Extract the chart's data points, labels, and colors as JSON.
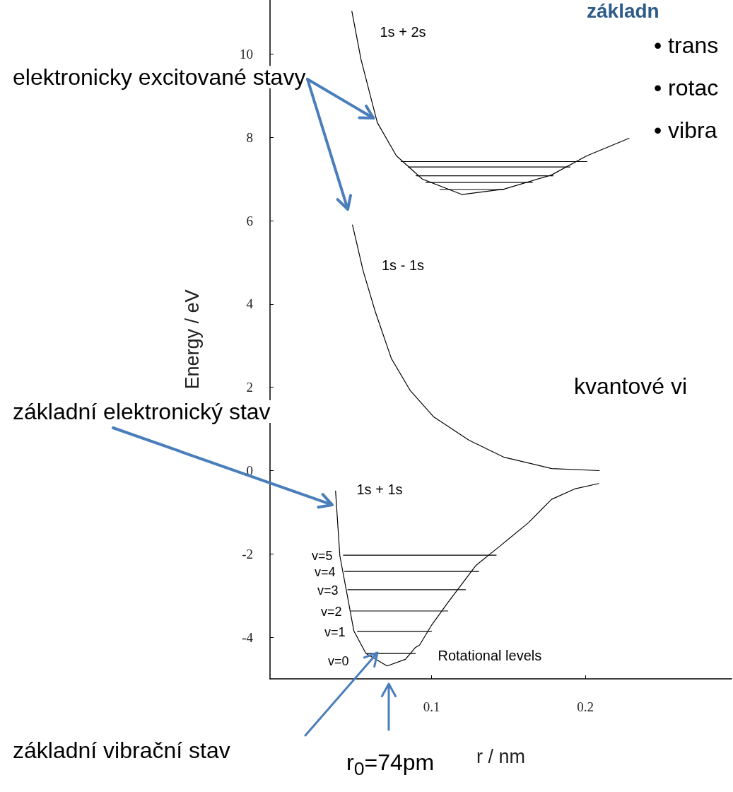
{
  "chart_data": {
    "type": "line",
    "xlabel": "r / nm",
    "ylabel": "Energy / eV",
    "xlim": [
      -0.005,
      0.295
    ],
    "ylim": [
      -5,
      11.3
    ],
    "xticks": [
      0.1,
      0.2
    ],
    "yticks": [
      -4,
      -2,
      0,
      2,
      4,
      6,
      8,
      10
    ],
    "marker": "none",
    "line_style": "solid",
    "grid": false,
    "series": [
      {
        "color": "#000000",
        "x": [
          0.0376,
          0.0404,
          0.045,
          0.0495,
          0.0573,
          0.0711,
          0.083,
          0.0894,
          0.0922,
          0.1,
          0.1106,
          0.129,
          0.1445,
          0.163,
          0.178,
          0.193,
          0.2087
        ],
        "values": [
          -0.49,
          -2.05,
          -2.95,
          -3.85,
          -4.39,
          -4.69,
          -4.53,
          -4.25,
          -4.19,
          -3.71,
          -3.17,
          -2.27,
          -1.81,
          -1.25,
          -0.69,
          -0.44,
          -0.31
        ]
      },
      {
        "color": "#000000",
        "x": [
          0.0486,
          0.0555,
          0.0633,
          0.0739,
          0.0862,
          0.1014,
          0.1243,
          0.1472,
          0.178,
          0.209
        ],
        "values": [
          5.9,
          4.8,
          3.83,
          2.69,
          1.92,
          1.29,
          0.73,
          0.32,
          0.05,
          0
        ]
      },
      {
        "color": "#000000",
        "x": [
          0.0482,
          0.0541,
          0.0647,
          0.0771,
          0.094,
          0.1197,
          0.1472,
          0.178,
          0.201,
          0.2284
        ],
        "values": [
          11.03,
          9.88,
          8.36,
          7.56,
          7.0,
          6.63,
          6.76,
          7.1,
          7.56,
          7.98
        ]
      },
      {
        "color": "#000000",
        "x": [
          0.0427,
          0.142
        ],
        "values": [
          -2.03,
          -2.03
        ]
      },
      {
        "color": "#000000",
        "x": [
          0.0435,
          0.1307
        ],
        "values": [
          -2.42,
          -2.42
        ]
      },
      {
        "color": "#000000",
        "x": [
          0.0455,
          0.122
        ],
        "values": [
          -2.86,
          -2.86
        ]
      },
      {
        "color": "#000000",
        "x": [
          0.0477,
          0.1106
        ],
        "values": [
          -3.37,
          -3.37
        ]
      },
      {
        "color": "#000000",
        "x": [
          0.0518,
          0.1
        ],
        "values": [
          -3.86,
          -3.86
        ]
      },
      {
        "color": "#000000",
        "x": [
          0.058,
          0.0894
        ],
        "values": [
          -4.39,
          -4.39
        ]
      },
      {
        "color": "#000000",
        "x": [
          0.0803,
          0.201
        ],
        "values": [
          7.42,
          7.42
        ]
      },
      {
        "color": "#000000",
        "x": [
          0.0849,
          0.19
        ],
        "values": [
          7.29,
          7.29
        ]
      },
      {
        "color": "#000000",
        "x": [
          0.0899,
          0.179
        ],
        "values": [
          7.08,
          7.08
        ]
      },
      {
        "color": "#000000",
        "x": [
          0.0963,
          0.1656
        ],
        "values": [
          6.92,
          6.92
        ]
      },
      {
        "color": "#000000",
        "x": [
          0.1055,
          0.147
        ],
        "values": [
          6.75,
          6.75
        ]
      }
    ],
    "annotations": [
      "1s + 2s",
      "1s - 1s",
      "1s + 1s",
      "v=5",
      "v=4",
      "v=3",
      "v=2",
      "v=1",
      "v=0",
      "Rotational levels",
      {
        "text": "elektronicky excitované stavy",
        "x": 0.0642,
        "y": 8.42
      },
      {
        "text": "základní elektronický stav",
        "x": 0.0376,
        "y": -0.85
      },
      "základní vibrační stav",
      "r$_{0}$=74pm",
      "kvantové vi",
      "základn",
      "• trans",
      "• rotac",
      "• vibra"
    ]
  }
}
